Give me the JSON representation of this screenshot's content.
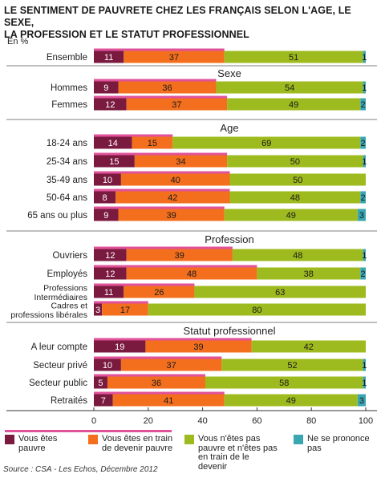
{
  "title_line1": "LE SENTIMENT DE PAUVRETE CHEZ LES FRANÇAIS SELON  L'AGE, LE SEXE,",
  "title_line2": "LA PROFESSION ET LE STATUT PROFESSIONNEL",
  "unit_label": "En %",
  "source": "Source : CSA - Les Echos, Décembre 2012",
  "colors": {
    "pauvre": "#7a1a3f",
    "en_train": "#f36f1e",
    "pas_pauvre": "#9dbb1e",
    "ne_se_prononce": "#3aa6b2",
    "accent_line": "#e0529a"
  },
  "legend": [
    {
      "label": "Vous êtes pauvre",
      "color_key": "pauvre"
    },
    {
      "label": "Vous êtes en train de devenir pauvre",
      "color_key": "en_train"
    },
    {
      "label": "Vous n'êtes pas pauvre et n'êtes pas en train de le devenir",
      "color_key": "pas_pauvre"
    },
    {
      "label": "Ne se prononce pas",
      "color_key": "ne_se_prononce"
    }
  ],
  "chart_data": {
    "type": "bar",
    "orientation": "horizontal",
    "stacked": true,
    "title": "LE SENTIMENT DE PAUVRETE CHEZ LES FRANÇAIS SELON  L'AGE, LE SEXE, LA PROFESSION ET LE STATUT PROFESSIONNEL",
    "xlabel": "",
    "ylabel": "",
    "xlim": [
      0,
      100
    ],
    "xticks": [
      0,
      20,
      40,
      60,
      80,
      100
    ],
    "series_names": [
      "Vous êtes pauvre",
      "Vous êtes en train de devenir pauvre",
      "Vous n'êtes pas pauvre et n'êtes pas en train de le devenir",
      "Ne se prononce pas"
    ],
    "groups": [
      {
        "heading": "",
        "rows": [
          {
            "label": "Ensemble",
            "values": [
              11,
              37,
              51,
              1
            ]
          }
        ]
      },
      {
        "heading": "Sexe",
        "rows": [
          {
            "label": "Hommes",
            "values": [
              9,
              36,
              54,
              1
            ]
          },
          {
            "label": "Femmes",
            "values": [
              12,
              37,
              49,
              2
            ]
          }
        ]
      },
      {
        "heading": "Age",
        "rows": [
          {
            "label": "18-24 ans",
            "values": [
              14,
              15,
              69,
              2
            ]
          },
          {
            "label": "25-34 ans",
            "values": [
              15,
              34,
              50,
              1
            ]
          },
          {
            "label": "35-49 ans",
            "values": [
              10,
              40,
              50,
              0
            ]
          },
          {
            "label": "50-64 ans",
            "values": [
              8,
              42,
              48,
              2
            ]
          },
          {
            "label": "65 ans ou plus",
            "values": [
              9,
              39,
              49,
              3
            ]
          }
        ]
      },
      {
        "heading": "Profession",
        "rows": [
          {
            "label": "Ouvriers",
            "values": [
              12,
              39,
              48,
              1
            ]
          },
          {
            "label": "Employés",
            "values": [
              12,
              48,
              38,
              2
            ]
          },
          {
            "label": "Professions Intermédiaires",
            "label_lines": [
              "Professions",
              "Intermédiaires"
            ],
            "values": [
              11,
              26,
              63,
              0
            ]
          },
          {
            "label": "Cadres et professions libérales",
            "label_lines": [
              "Cadres et",
              "professions libérales"
            ],
            "values": [
              3,
              17,
              80,
              0
            ]
          }
        ]
      },
      {
        "heading": "Statut professionnel",
        "rows": [
          {
            "label": "A leur compte",
            "values": [
              19,
              39,
              42,
              0
            ]
          },
          {
            "label": "Secteur privé",
            "values": [
              10,
              37,
              52,
              1
            ]
          },
          {
            "label": "Secteur public",
            "values": [
              5,
              36,
              58,
              1
            ]
          },
          {
            "label": "Retraités",
            "values": [
              7,
              41,
              49,
              3
            ]
          }
        ]
      }
    ]
  }
}
